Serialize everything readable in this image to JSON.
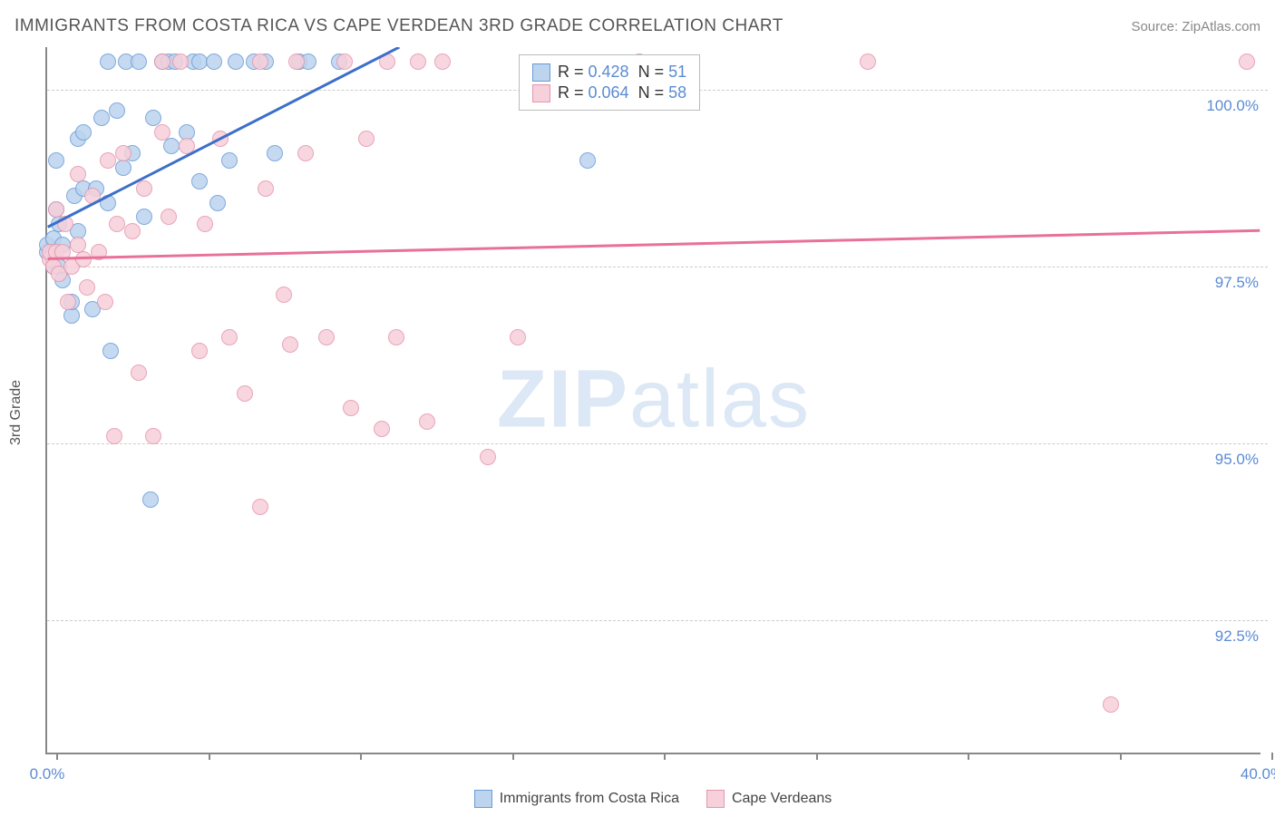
{
  "chart": {
    "type": "scatter",
    "title": "IMMIGRANTS FROM COSTA RICA VS CAPE VERDEAN 3RD GRADE CORRELATION CHART",
    "source": "Source: ZipAtlas.com",
    "ylabel": "3rd Grade",
    "watermark": {
      "part1": "ZIP",
      "part2": "atlas"
    },
    "background_color": "#ffffff",
    "grid_color": "#cccccc",
    "axis_color": "#888888",
    "label_color": "#5b8bd4",
    "title_color": "#555555",
    "title_fontsize": 19,
    "label_fontsize": 17,
    "xlim": [
      0,
      40
    ],
    "ylim": [
      90.6,
      100.6
    ],
    "yticks": [
      {
        "value": 100.0,
        "label": "100.0%"
      },
      {
        "value": 97.5,
        "label": "97.5%"
      },
      {
        "value": 95.0,
        "label": "95.0%"
      },
      {
        "value": 92.5,
        "label": "92.5%"
      }
    ],
    "xticks_label": [
      {
        "value": 0.0,
        "label": "0.0%"
      },
      {
        "value": 40.0,
        "label": "40.0%"
      }
    ],
    "xticks_mark": [
      0.3,
      5.3,
      10.3,
      15.3,
      20.3,
      25.3,
      30.3,
      35.3,
      40.3
    ],
    "series": [
      {
        "name": "Immigrants from Costa Rica",
        "color_fill": "#bcd4ee",
        "color_stroke": "#6a9bd8",
        "line_color": "#3c6fc9",
        "line_width": 3,
        "marker_radius": 9,
        "marker_opacity": 0.85,
        "stats": {
          "R": "0.428",
          "N": "51"
        },
        "trendline": {
          "x1": 0,
          "y1": 98.05,
          "x2": 11.6,
          "y2": 100.6
        },
        "points": [
          [
            0.0,
            97.7
          ],
          [
            0.0,
            97.8
          ],
          [
            0.2,
            97.5
          ],
          [
            0.2,
            97.7
          ],
          [
            0.2,
            97.9
          ],
          [
            0.3,
            98.3
          ],
          [
            0.3,
            99.0
          ],
          [
            0.4,
            97.5
          ],
          [
            0.4,
            98.1
          ],
          [
            0.5,
            97.3
          ],
          [
            0.5,
            97.8
          ],
          [
            0.8,
            96.8
          ],
          [
            0.8,
            97.0
          ],
          [
            0.9,
            98.5
          ],
          [
            1.0,
            98.0
          ],
          [
            1.0,
            99.3
          ],
          [
            1.2,
            98.6
          ],
          [
            1.2,
            99.4
          ],
          [
            1.5,
            96.9
          ],
          [
            1.6,
            98.6
          ],
          [
            1.8,
            99.6
          ],
          [
            2.0,
            98.4
          ],
          [
            2.0,
            100.4
          ],
          [
            2.1,
            96.3
          ],
          [
            2.3,
            99.7
          ],
          [
            2.5,
            98.9
          ],
          [
            2.6,
            100.4
          ],
          [
            2.8,
            99.1
          ],
          [
            3.0,
            100.4
          ],
          [
            3.2,
            98.2
          ],
          [
            3.4,
            94.2
          ],
          [
            3.5,
            99.6
          ],
          [
            3.8,
            100.4
          ],
          [
            4.0,
            100.4
          ],
          [
            4.1,
            99.2
          ],
          [
            4.2,
            100.4
          ],
          [
            4.6,
            99.4
          ],
          [
            4.8,
            100.4
          ],
          [
            5.0,
            98.7
          ],
          [
            5.0,
            100.4
          ],
          [
            5.5,
            100.4
          ],
          [
            5.6,
            98.4
          ],
          [
            6.0,
            99.0
          ],
          [
            6.2,
            100.4
          ],
          [
            6.8,
            100.4
          ],
          [
            7.2,
            100.4
          ],
          [
            7.5,
            99.1
          ],
          [
            8.3,
            100.4
          ],
          [
            8.6,
            100.4
          ],
          [
            9.6,
            100.4
          ],
          [
            17.8,
            99.0
          ]
        ]
      },
      {
        "name": "Cape Verdeans",
        "color_fill": "#f6d0da",
        "color_stroke": "#e695ad",
        "line_color": "#e87099",
        "line_width": 3,
        "marker_radius": 9,
        "marker_opacity": 0.85,
        "stats": {
          "R": "0.064",
          "N": "58"
        },
        "trendline": {
          "x1": 0,
          "y1": 97.6,
          "x2": 40,
          "y2": 98.0
        },
        "points": [
          [
            0.1,
            97.6
          ],
          [
            0.1,
            97.7
          ],
          [
            0.2,
            97.5
          ],
          [
            0.3,
            97.7
          ],
          [
            0.3,
            98.3
          ],
          [
            0.4,
            97.4
          ],
          [
            0.5,
            97.7
          ],
          [
            0.6,
            98.1
          ],
          [
            0.7,
            97.0
          ],
          [
            0.8,
            97.5
          ],
          [
            1.0,
            97.8
          ],
          [
            1.0,
            98.8
          ],
          [
            1.2,
            97.6
          ],
          [
            1.3,
            97.2
          ],
          [
            1.5,
            98.5
          ],
          [
            1.7,
            97.7
          ],
          [
            1.9,
            97.0
          ],
          [
            2.0,
            99.0
          ],
          [
            2.2,
            95.1
          ],
          [
            2.3,
            98.1
          ],
          [
            2.5,
            99.1
          ],
          [
            2.8,
            98.0
          ],
          [
            3.0,
            96.0
          ],
          [
            3.2,
            98.6
          ],
          [
            3.5,
            95.1
          ],
          [
            3.8,
            99.4
          ],
          [
            3.8,
            100.4
          ],
          [
            4.0,
            98.2
          ],
          [
            4.4,
            100.4
          ],
          [
            4.6,
            99.2
          ],
          [
            5.0,
            96.3
          ],
          [
            5.2,
            98.1
          ],
          [
            5.7,
            99.3
          ],
          [
            6.0,
            96.5
          ],
          [
            6.5,
            95.7
          ],
          [
            7.0,
            100.4
          ],
          [
            7.0,
            94.1
          ],
          [
            7.2,
            98.6
          ],
          [
            7.8,
            97.1
          ],
          [
            8.0,
            96.4
          ],
          [
            8.2,
            100.4
          ],
          [
            8.5,
            99.1
          ],
          [
            9.2,
            96.5
          ],
          [
            9.8,
            100.4
          ],
          [
            10.0,
            95.5
          ],
          [
            10.5,
            99.3
          ],
          [
            11.0,
            95.2
          ],
          [
            11.2,
            100.4
          ],
          [
            11.5,
            96.5
          ],
          [
            12.2,
            100.4
          ],
          [
            12.5,
            95.3
          ],
          [
            13.0,
            100.4
          ],
          [
            14.5,
            94.8
          ],
          [
            15.5,
            96.5
          ],
          [
            19.5,
            100.4
          ],
          [
            27.0,
            100.4
          ],
          [
            35.0,
            91.3
          ],
          [
            39.5,
            100.4
          ]
        ]
      }
    ],
    "legend_bottom": [
      {
        "label": "Immigrants from Costa Rica",
        "fill": "#bcd4ee",
        "stroke": "#6a9bd8"
      },
      {
        "label": "Cape Verdeans",
        "fill": "#f6d0da",
        "stroke": "#e695ad"
      }
    ]
  }
}
